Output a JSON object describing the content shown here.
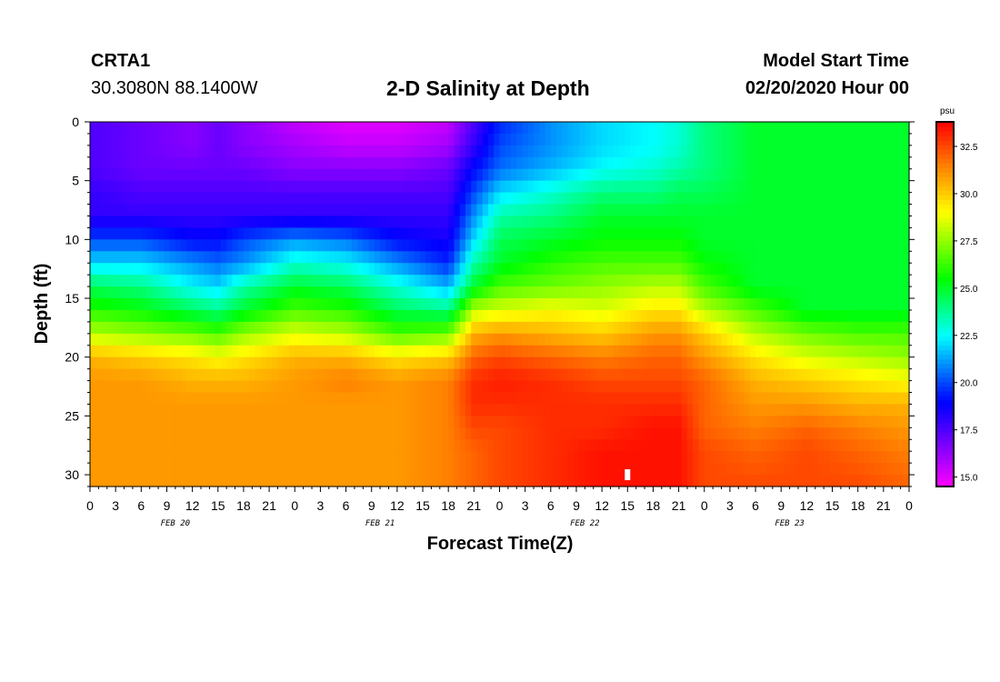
{
  "header": {
    "station_id": "CRTA1",
    "station_coords": "30.3080N 88.1400W",
    "title": "2-D Salinity at Depth",
    "start_label": "Model Start Time",
    "start_value": "02/20/2020 Hour 00"
  },
  "chart_data": {
    "type": "heatmap",
    "title": "2-D Salinity at Depth",
    "xlabel": "Forecast Time(Z)",
    "ylabel": "Depth (ft)",
    "x_range_hours": [
      0,
      96
    ],
    "x_tick_labels": [
      "0",
      "3",
      "6",
      "9",
      "12",
      "15",
      "18",
      "21",
      "0",
      "3",
      "6",
      "9",
      "12",
      "15",
      "18",
      "21",
      "0",
      "3",
      "6",
      "9",
      "12",
      "15",
      "18",
      "21",
      "0",
      "3",
      "6",
      "9",
      "12",
      "15",
      "18",
      "21",
      "0"
    ],
    "x_tick_step_hours": 3,
    "date_labels": [
      {
        "label": "FEB 20",
        "hour": 10
      },
      {
        "label": "FEB 21",
        "hour": 34
      },
      {
        "label": "FEB 22",
        "hour": 58
      },
      {
        "label": "FEB 23",
        "hour": 82
      }
    ],
    "y_range_ft": [
      0,
      31
    ],
    "y_ticks": [
      0,
      5,
      10,
      15,
      20,
      25,
      30
    ],
    "colorbar": {
      "unit": "psu",
      "range": [
        14.5,
        33.8
      ],
      "tick_values": [
        15.0,
        17.5,
        20.0,
        22.5,
        25.0,
        27.5,
        30.0,
        32.5
      ],
      "tick_labels": [
        "15.0",
        "17.5",
        "20.0",
        "22.5",
        "25.0",
        "27.5",
        "30.0",
        "32.5"
      ]
    },
    "observation_marker": {
      "hour": 63,
      "depth_ft": 30
    },
    "hours": [
      0,
      6,
      12,
      15,
      18,
      24,
      30,
      36,
      42,
      45,
      48,
      54,
      60,
      66,
      69,
      72,
      78,
      84,
      90,
      96
    ],
    "depths_ft": [
      0,
      2,
      4,
      6,
      8,
      10,
      12,
      14,
      16,
      18,
      20,
      22,
      24,
      26,
      28,
      31
    ],
    "salinity_psu": [
      [
        17.5,
        17.0,
        16.5,
        17.0,
        16.5,
        15.5,
        15.0,
        15.0,
        15.5,
        17.5,
        19.5,
        21.0,
        22.0,
        22.5,
        23.0,
        24.0,
        25.0,
        25.0,
        25.0,
        25.0
      ],
      [
        17.5,
        17.0,
        16.5,
        17.0,
        16.5,
        16.0,
        15.5,
        15.5,
        16.0,
        18.0,
        20.0,
        21.0,
        22.0,
        22.5,
        23.0,
        24.0,
        25.0,
        25.0,
        25.0,
        25.0
      ],
      [
        17.5,
        17.0,
        17.0,
        17.0,
        17.0,
        16.5,
        16.5,
        16.5,
        17.0,
        19.0,
        20.5,
        21.5,
        22.5,
        23.0,
        23.5,
        24.0,
        25.0,
        25.0,
        25.0,
        25.0
      ],
      [
        18.0,
        17.5,
        17.5,
        17.5,
        17.5,
        17.5,
        17.5,
        17.5,
        17.5,
        20.0,
        22.0,
        23.0,
        24.0,
        24.0,
        24.5,
        24.5,
        25.0,
        25.0,
        25.0,
        25.0
      ],
      [
        18.0,
        18.0,
        18.0,
        18.0,
        18.0,
        18.0,
        18.0,
        18.0,
        18.0,
        21.0,
        23.5,
        24.0,
        25.0,
        25.0,
        25.0,
        25.0,
        25.0,
        25.0,
        25.0,
        25.0
      ],
      [
        20.0,
        20.0,
        19.0,
        19.0,
        20.0,
        21.0,
        20.5,
        19.0,
        18.5,
        22.0,
        24.5,
        25.0,
        25.5,
        25.5,
        25.5,
        25.0,
        25.0,
        25.0,
        25.0,
        25.0
      ],
      [
        22.0,
        22.0,
        21.0,
        20.5,
        21.0,
        23.0,
        22.5,
        21.0,
        19.5,
        23.5,
        25.0,
        26.0,
        26.5,
        26.5,
        26.5,
        25.5,
        25.0,
        25.0,
        25.0,
        25.0
      ],
      [
        24.5,
        24.0,
        22.5,
        22.0,
        23.5,
        25.0,
        24.5,
        23.0,
        21.5,
        25.0,
        26.5,
        27.0,
        27.5,
        28.0,
        28.0,
        26.5,
        25.0,
        25.0,
        25.0,
        25.0
      ],
      [
        26.0,
        25.5,
        24.5,
        24.0,
        25.0,
        26.5,
        26.0,
        24.5,
        24.0,
        28.0,
        28.5,
        29.0,
        28.5,
        29.5,
        29.5,
        28.0,
        26.5,
        25.0,
        25.0,
        25.0
      ],
      [
        28.0,
        27.5,
        27.0,
        26.5,
        27.5,
        28.5,
        28.0,
        26.5,
        27.0,
        30.5,
        31.0,
        30.5,
        30.0,
        31.0,
        31.0,
        30.0,
        28.0,
        27.0,
        26.5,
        26.5
      ],
      [
        30.5,
        30.0,
        29.5,
        29.0,
        29.5,
        30.5,
        30.5,
        29.5,
        30.0,
        32.0,
        32.5,
        32.0,
        31.5,
        32.0,
        32.0,
        31.0,
        29.5,
        28.5,
        28.0,
        27.5
      ],
      [
        31.0,
        31.0,
        30.5,
        30.5,
        30.5,
        31.0,
        31.5,
        31.0,
        31.5,
        33.0,
        33.3,
        33.0,
        32.5,
        32.5,
        32.5,
        32.0,
        30.5,
        30.0,
        29.5,
        29.0
      ],
      [
        31.0,
        31.0,
        31.0,
        31.0,
        31.0,
        31.0,
        31.0,
        31.0,
        31.5,
        33.0,
        33.0,
        33.0,
        33.0,
        33.0,
        33.0,
        32.0,
        31.0,
        31.0,
        30.5,
        30.5
      ],
      [
        31.0,
        31.0,
        31.0,
        31.0,
        31.0,
        31.0,
        31.0,
        31.0,
        31.5,
        32.5,
        32.5,
        33.0,
        33.0,
        33.5,
        33.5,
        32.0,
        31.5,
        32.0,
        31.5,
        31.0
      ],
      [
        31.0,
        31.0,
        31.0,
        31.0,
        31.0,
        31.0,
        31.0,
        31.0,
        31.5,
        32.0,
        32.5,
        33.0,
        33.5,
        33.5,
        33.5,
        32.5,
        32.0,
        32.5,
        32.0,
        31.5
      ],
      [
        31.0,
        31.0,
        31.0,
        31.0,
        31.0,
        31.0,
        31.0,
        31.0,
        31.5,
        32.0,
        32.5,
        33.0,
        33.5,
        33.5,
        33.5,
        32.5,
        32.5,
        32.5,
        32.5,
        32.0
      ]
    ]
  }
}
